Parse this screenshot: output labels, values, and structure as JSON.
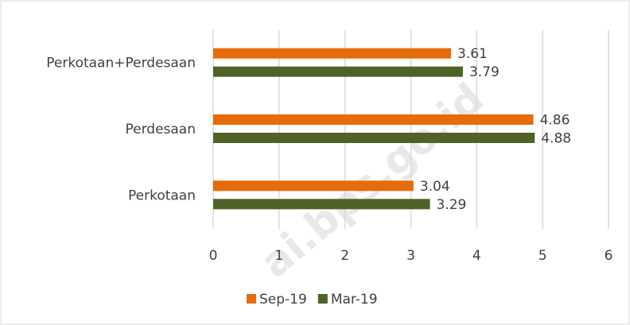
{
  "chart_data": {
    "type": "barh",
    "categories": [
      "Perkotaan+Perdesaan",
      "Perdesaan",
      "Perkotaan"
    ],
    "series": [
      {
        "name": "Sep-19",
        "color": "#e46c0a",
        "values": [
          3.61,
          4.86,
          3.04
        ]
      },
      {
        "name": "Mar-19",
        "color": "#4f6228",
        "values": [
          3.79,
          4.88,
          3.29
        ]
      }
    ],
    "xlim": [
      0,
      6
    ],
    "xticks": [
      0,
      1,
      2,
      3,
      4,
      5,
      6
    ],
    "grid": true,
    "legend": "bottom",
    "watermark": "ai.bps.go.id"
  }
}
